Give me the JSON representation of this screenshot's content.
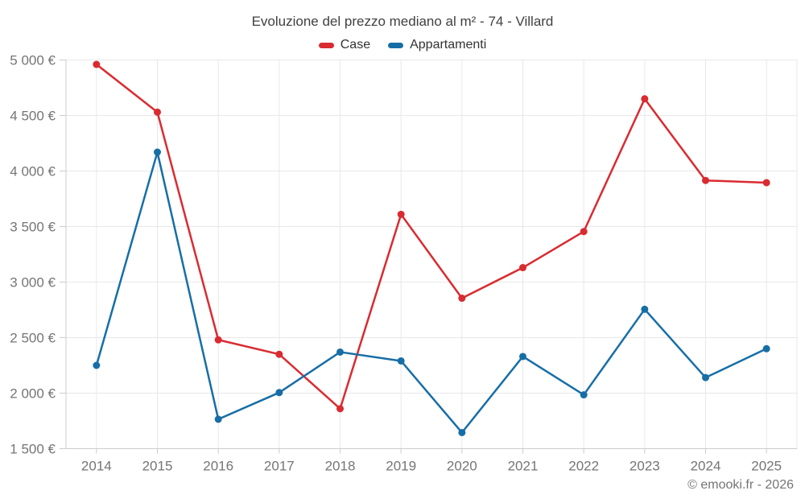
{
  "title": "Evoluzione del prezzo mediano al m² - 74 - Villard",
  "footer": {
    "text": "© emooki.fr - 2026"
  },
  "colors": {
    "case_series": "#d92b30",
    "appartamenti_series": "#176ea6",
    "gridline": "#e8e8e8",
    "axis_line": "#cccccc",
    "tick_text": "#757575",
    "title_text": "#404040"
  },
  "chart_data": {
    "type": "line",
    "x": [
      2014,
      2015,
      2016,
      2017,
      2018,
      2019,
      2020,
      2021,
      2022,
      2023,
      2024,
      2025
    ],
    "series": [
      {
        "name": "Case",
        "color": "#d92b30",
        "values": [
          4960,
          4530,
          2480,
          2350,
          1860,
          3610,
          2855,
          3130,
          3455,
          4650,
          3915,
          3895
        ]
      },
      {
        "name": "Appartamenti",
        "color": "#176ea6",
        "values": [
          2250,
          4170,
          1765,
          2005,
          2370,
          2290,
          1645,
          2330,
          1985,
          2755,
          2140,
          2400
        ]
      }
    ],
    "ylim": [
      1500,
      5000
    ],
    "ytick_step": 500,
    "ytick_suffix": " €",
    "grid": true,
    "legend_position": "top",
    "xlabel": "",
    "ylabel": ""
  }
}
